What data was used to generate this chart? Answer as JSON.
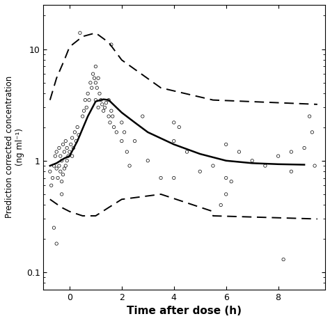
{
  "scatter_x": [
    -0.75,
    -0.7,
    -0.65,
    -0.6,
    -0.55,
    -0.5,
    -0.5,
    -0.45,
    -0.4,
    -0.4,
    -0.35,
    -0.35,
    -0.3,
    -0.3,
    -0.25,
    -0.25,
    -0.2,
    -0.2,
    -0.15,
    -0.15,
    -0.1,
    -0.1,
    -0.05,
    0.0,
    0.05,
    0.1,
    0.1,
    0.15,
    0.2,
    0.25,
    0.3,
    0.35,
    0.5,
    0.55,
    0.6,
    0.65,
    0.7,
    0.75,
    0.8,
    0.85,
    0.9,
    0.95,
    1.0,
    1.0,
    1.0,
    1.05,
    1.1,
    1.1,
    1.15,
    1.2,
    1.25,
    1.3,
    1.35,
    1.4,
    1.5,
    1.5,
    1.55,
    1.6,
    1.65,
    1.7,
    1.8,
    2.0,
    2.0,
    2.1,
    2.2,
    2.3,
    2.5,
    3.0,
    3.5,
    4.0,
    4.0,
    4.0,
    4.5,
    5.0,
    5.5,
    6.0,
    6.0,
    6.0,
    6.2,
    6.5,
    7.0,
    7.5,
    8.0,
    8.5,
    8.5,
    9.0,
    9.2,
    9.3,
    9.4,
    -0.6,
    -0.5,
    -0.3,
    0.4,
    1.6,
    2.8,
    4.2,
    5.8,
    8.2
  ],
  "scatter_y": [
    0.8,
    0.6,
    0.7,
    0.9,
    1.1,
    0.85,
    1.2,
    0.7,
    0.9,
    1.3,
    0.8,
    1.1,
    0.65,
    1.0,
    0.75,
    1.4,
    0.85,
    1.2,
    0.9,
    1.5,
    1.0,
    1.3,
    1.1,
    1.2,
    1.4,
    1.1,
    1.6,
    1.3,
    1.8,
    1.5,
    2.0,
    1.7,
    2.5,
    2.8,
    3.5,
    3.0,
    4.0,
    3.5,
    5.0,
    4.5,
    6.0,
    5.5,
    7.0,
    5.0,
    3.5,
    4.5,
    3.0,
    5.5,
    4.0,
    3.5,
    3.2,
    2.8,
    3.0,
    3.3,
    2.5,
    3.5,
    2.2,
    2.8,
    2.5,
    2.0,
    1.8,
    2.2,
    1.5,
    1.8,
    1.2,
    0.9,
    1.5,
    1.0,
    0.7,
    2.2,
    1.5,
    0.7,
    1.2,
    0.8,
    0.9,
    1.4,
    0.7,
    0.5,
    0.65,
    1.2,
    1.0,
    0.9,
    1.1,
    1.2,
    0.8,
    1.3,
    2.5,
    1.8,
    0.9,
    0.25,
    0.18,
    0.5,
    14.0,
    11.0,
    2.5,
    2.0,
    0.4,
    0.13
  ],
  "median_x": [
    -0.75,
    -0.5,
    -0.2,
    0.0,
    0.3,
    0.7,
    1.0,
    1.3,
    1.5,
    2.0,
    2.5,
    3.0,
    4.0,
    5.0,
    6.0,
    7.0,
    8.0,
    9.0
  ],
  "median_y": [
    0.9,
    0.95,
    1.05,
    1.1,
    1.5,
    2.5,
    3.4,
    3.55,
    3.5,
    2.7,
    2.2,
    1.8,
    1.4,
    1.15,
    1.0,
    0.95,
    0.93,
    0.92
  ],
  "upper_band_x": [
    -0.75,
    -0.5,
    -0.2,
    0.0,
    0.5,
    1.0,
    1.5,
    2.0,
    3.5,
    5.5,
    5.5,
    9.5
  ],
  "upper_band_y": [
    3.5,
    5.5,
    8.0,
    10.5,
    13.0,
    14.0,
    11.5,
    8.0,
    4.5,
    3.5,
    3.5,
    3.2
  ],
  "lower_band_x": [
    -0.75,
    -0.3,
    0.0,
    0.5,
    1.0,
    1.5,
    2.0,
    3.5,
    5.5,
    5.5,
    9.5
  ],
  "lower_band_y": [
    0.45,
    0.38,
    0.35,
    0.32,
    0.32,
    0.38,
    0.45,
    0.5,
    0.35,
    0.32,
    0.3
  ],
  "xlim": [
    -1.0,
    9.8
  ],
  "ylim_log": [
    0.07,
    25.0
  ],
  "xticks": [
    0,
    2,
    4,
    6,
    8
  ],
  "ytick_labels": [
    "0.1",
    "1",
    "10"
  ],
  "ytick_vals": [
    0.1,
    1.0,
    10.0
  ],
  "xlabel": "Time after dose (h)",
  "ylabel": "Prediction corrected concentration\n(ng ml⁻¹)",
  "background_color": "#ffffff",
  "scatter_color": "black",
  "median_color": "black",
  "band_color": "black"
}
